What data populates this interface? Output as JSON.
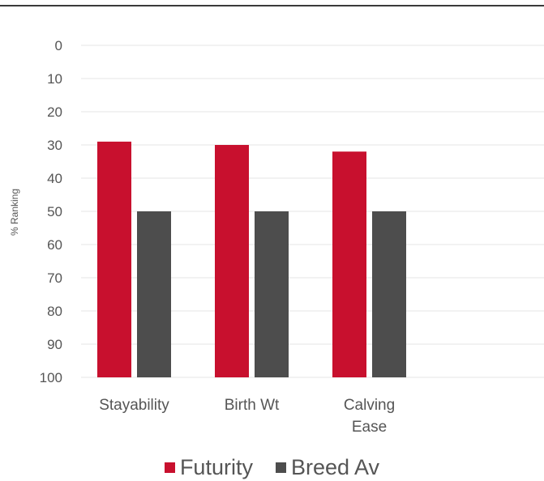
{
  "chart_data": {
    "type": "bar",
    "ylabel": "% Ranking",
    "y_inverted": true,
    "ylim": [
      0,
      100
    ],
    "yticks": [
      "0",
      "10",
      "20",
      "30",
      "40",
      "50",
      "60",
      "70",
      "80",
      "90",
      "100"
    ],
    "categories": [
      [
        "Stayability"
      ],
      [
        "Birth Wt"
      ],
      [
        "Calving",
        "Ease"
      ]
    ],
    "series": [
      {
        "name": "Futurity",
        "color": "#c8102e",
        "values": [
          29,
          30,
          32
        ]
      },
      {
        "name": "Breed Av",
        "color": "#4d4d4d",
        "values": [
          50,
          50,
          50
        ]
      }
    ],
    "grid": true,
    "legend_position": "bottom"
  }
}
